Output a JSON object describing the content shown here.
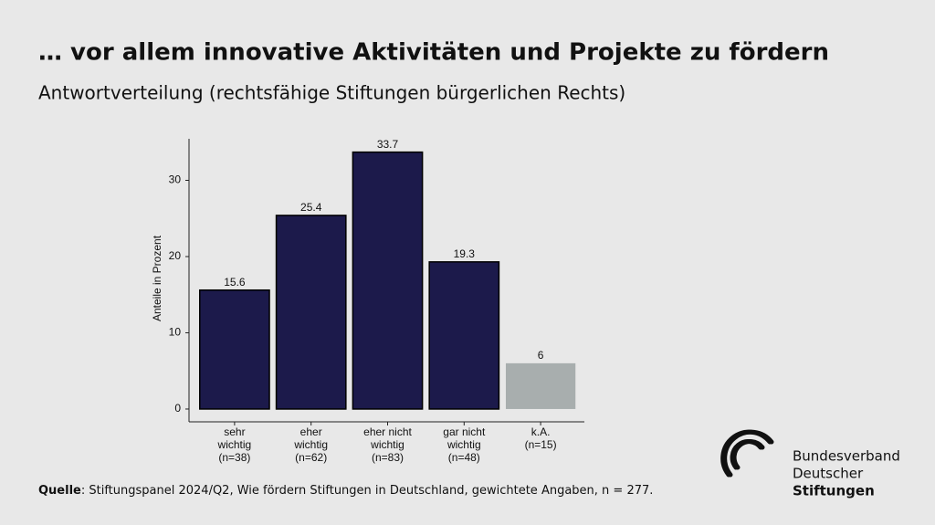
{
  "chart_data": {
    "type": "bar",
    "title": "… vor allem innovative Aktivitäten und Projekte zu fördern",
    "subtitle": "Antwortverteilung (rechtsfähige Stiftungen bürgerlichen Rechts)",
    "y_label": "Anteile in Prozent",
    "categories": [
      [
        "sehr",
        "wichtig",
        "(n=38)"
      ],
      [
        "eher",
        "wichtig",
        "(n=62)"
      ],
      [
        "eher nicht",
        "wichtig",
        "(n=83)"
      ],
      [
        "gar nicht",
        "wichtig",
        "(n=48)"
      ],
      [
        "k.A.",
        "(n=15)"
      ]
    ],
    "values": [
      15.6,
      25.4,
      33.7,
      19.3,
      6
    ],
    "colors": [
      "#1c1a4b",
      "#1c1a4b",
      "#1c1a4b",
      "#1c1a4b",
      "#a8aeae"
    ],
    "ylim": [
      -1.68,
      35.45
    ],
    "yticks": [
      0,
      10,
      20,
      30
    ],
    "grid": false
  },
  "source": {
    "label": "Quelle",
    "text": ": Stiftungspanel 2024/Q2, Wie fördern Stiftungen in Deutschland, gewichtete Angaben, n = 277."
  },
  "logo": {
    "line1": "Bundesverband",
    "line2": "Deutscher",
    "line3": "Stiftungen"
  }
}
